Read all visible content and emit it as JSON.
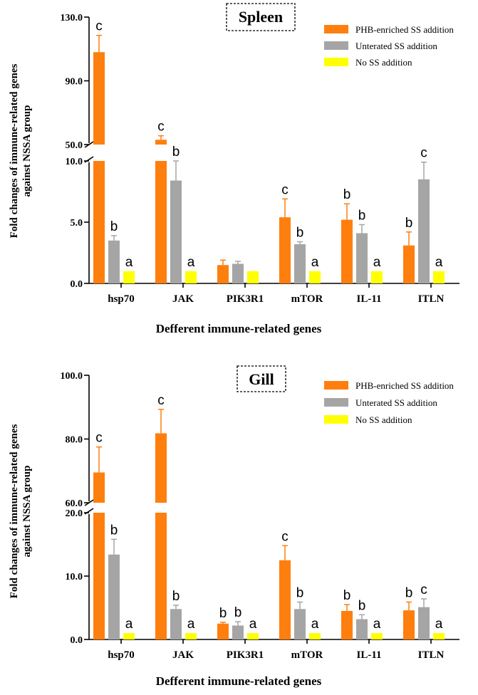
{
  "chart_data": [
    {
      "type": "bar",
      "title": "Spleen",
      "xlabel": "Defferent immune-related genes",
      "ylabel": [
        "Fold changes of immune-related genes",
        "against NSSA group"
      ],
      "categories": [
        "hsp70",
        "JAK",
        "PIK3R1",
        "mTOR",
        "IL-11",
        "ITLN"
      ],
      "axis_break": true,
      "lower_ylim": [
        0,
        10
      ],
      "upper_ylim": [
        50,
        130
      ],
      "yticks_lower": [
        "0.0",
        "5.0",
        "10.0"
      ],
      "yticks_upper": [
        "50.0",
        "90.0",
        "130.0"
      ],
      "legend_position": "top-right",
      "series": [
        {
          "name": "PHB-enriched SS addition",
          "color": "#ff7f0e",
          "values": [
            108,
            53,
            1.5,
            5.4,
            5.2,
            3.1
          ],
          "errors": [
            10.5,
            2.5,
            0.4,
            1.5,
            1.3,
            1.1
          ],
          "letters": [
            "c",
            "c",
            "",
            "c",
            "b",
            "b"
          ]
        },
        {
          "name": "Unterated SS addition",
          "color": "#a5a5a5",
          "values": [
            3.5,
            8.4,
            1.6,
            3.2,
            4.1,
            8.5
          ],
          "errors": [
            0.4,
            1.6,
            0.2,
            0.2,
            0.7,
            1.4
          ],
          "letters": [
            "b",
            "b",
            "",
            "b",
            "b",
            "c"
          ]
        },
        {
          "name": "No SS addition",
          "color": "#ffff00",
          "values": [
            1,
            1,
            1,
            1,
            1,
            1
          ],
          "errors": [
            0,
            0,
            0,
            0,
            0,
            0
          ],
          "letters": [
            "a",
            "a",
            "",
            "a",
            "a",
            "a"
          ]
        }
      ]
    },
    {
      "type": "bar",
      "title": "Gill",
      "xlabel": "Defferent immune-related genes",
      "ylabel": [
        "Fold changes of immune-related genes",
        "against NSSA group"
      ],
      "categories": [
        "hsp70",
        "JAK",
        "PIK3R1",
        "mTOR",
        "IL-11",
        "ITLN"
      ],
      "axis_break": true,
      "lower_ylim": [
        0,
        20
      ],
      "upper_ylim": [
        60,
        100
      ],
      "yticks_lower": [
        "0.0",
        "10.0",
        "20.0"
      ],
      "yticks_upper": [
        "60.0",
        "80.0",
        "100.0"
      ],
      "legend_position": "top-right",
      "series": [
        {
          "name": "PHB-enriched SS addition",
          "color": "#ff7f0e",
          "values": [
            69.5,
            81.8,
            2.5,
            12.5,
            4.5,
            4.6
          ],
          "errors": [
            8,
            7.5,
            0.2,
            2.3,
            1,
            1.3
          ],
          "letters": [
            "c",
            "c",
            "b",
            "c",
            "b",
            "b"
          ]
        },
        {
          "name": "Unterated SS addition",
          "color": "#a5a5a5",
          "values": [
            13.4,
            4.8,
            2.2,
            4.8,
            3.2,
            5.1
          ],
          "errors": [
            2.4,
            0.6,
            0.6,
            1.1,
            0.7,
            1.3
          ],
          "letters": [
            "b",
            "b",
            "b",
            "b",
            "b",
            "c"
          ]
        },
        {
          "name": "No SS addition",
          "color": "#ffff00",
          "values": [
            1,
            1,
            1,
            1,
            1,
            1
          ],
          "errors": [
            0,
            0,
            0,
            0,
            0,
            0
          ],
          "letters": [
            "a",
            "a",
            "a",
            "a",
            "a",
            "a"
          ]
        }
      ]
    }
  ]
}
